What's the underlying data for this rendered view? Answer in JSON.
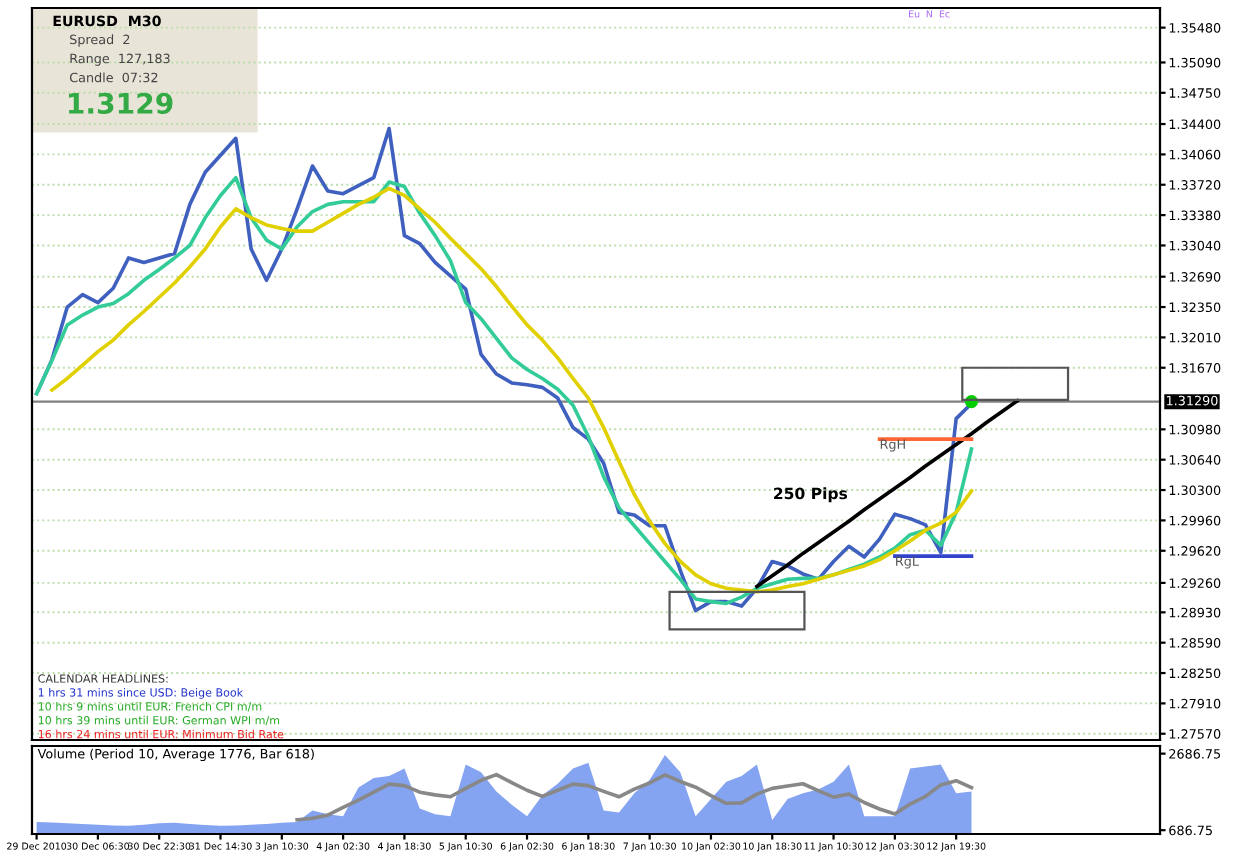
{
  "chart_data": [
    {
      "type": "line",
      "ylim": [
        1.275,
        1.357
      ],
      "tick_labels": "y",
      "grid": "y",
      "legend": false,
      "marker": "none",
      "line_style": "solid",
      "categories": [
        null,
        null,
        null,
        null,
        null,
        null,
        null,
        null,
        null,
        null,
        null,
        null,
        null,
        null,
        null,
        null,
        null,
        null,
        null,
        null,
        null,
        null,
        null,
        null,
        null,
        null,
        null,
        null,
        null,
        null,
        null,
        null,
        null,
        null,
        null,
        null,
        null,
        null,
        null,
        null,
        null,
        null,
        null,
        null,
        null,
        null,
        null,
        null,
        null,
        null,
        null,
        null,
        null,
        null,
        null,
        null,
        null,
        null,
        null,
        null,
        null,
        null,
        null,
        null,
        null,
        null,
        null,
        null,
        null,
        null,
        null,
        null,
        null,
        null
      ],
      "yticks": [
        {
          "value": 1.2757,
          "label": "1.27570"
        },
        {
          "value": 1.2791,
          "label": "1.27910"
        },
        {
          "value": 1.2825,
          "label": "1.28250"
        },
        {
          "value": 1.2859,
          "label": "1.28590"
        },
        {
          "value": 1.2893,
          "label": "1.28930"
        },
        {
          "value": 1.2926,
          "label": "1.29260"
        },
        {
          "value": 1.2962,
          "label": "1.29620"
        },
        {
          "value": 1.2996,
          "label": "1.29960"
        },
        {
          "value": 1.303,
          "label": "1.30300"
        },
        {
          "value": 1.3064,
          "label": "1.30640"
        },
        {
          "value": 1.3098,
          "label": "1.30980"
        },
        {
          "value": 1.3167,
          "label": "1.31670"
        },
        {
          "value": 1.3201,
          "label": "1.32010"
        },
        {
          "value": 1.3235,
          "label": "1.32350"
        },
        {
          "value": 1.3269,
          "label": "1.32690"
        },
        {
          "value": 1.3304,
          "label": "1.33040"
        },
        {
          "value": 1.3338,
          "label": "1.33380"
        },
        {
          "value": 1.3372,
          "label": "1.33720"
        },
        {
          "value": 1.3406,
          "label": "1.34060"
        },
        {
          "value": 1.344,
          "label": "1.34400"
        },
        {
          "value": 1.3475,
          "label": "1.34750"
        },
        {
          "value": 1.3509,
          "label": "1.35090"
        },
        {
          "value": 1.3548,
          "label": "1.35480"
        }
      ],
      "series": [
        {
          "color": "#4060c0",
          "values": [
            1.3138,
            1.3176,
            1.3235,
            1.3249,
            1.324,
            1.3256,
            1.329,
            1.3285,
            1.329,
            1.3295,
            1.335,
            1.3386,
            1.3405,
            1.3424,
            1.33,
            1.3265,
            1.33,
            1.3345,
            1.3393,
            1.3365,
            1.3362,
            1.3371,
            1.338,
            1.3435,
            1.3315,
            1.3306,
            1.3285,
            1.327,
            1.3255,
            1.3182,
            1.316,
            1.315,
            1.3148,
            1.3145,
            1.3133,
            1.31,
            1.3087,
            1.306,
            1.3005,
            1.3002,
            1.299,
            1.299,
            1.294,
            1.2895,
            1.2905,
            1.2905,
            1.29,
            1.292,
            1.295,
            1.2945,
            1.2936,
            1.293,
            1.295,
            1.2967,
            1.2955,
            1.2975,
            1.3003,
            1.2998,
            1.2991,
            1.296,
            1.311,
            1.3127,
            null,
            null,
            null,
            null,
            null,
            null,
            null,
            null,
            null,
            null,
            null,
            null
          ]
        },
        {
          "color": "#33cc99",
          "values": [
            1.3138,
            1.3175,
            1.3215,
            1.3226,
            1.3235,
            1.3239,
            1.325,
            1.3265,
            1.3277,
            1.329,
            1.3304,
            1.3335,
            1.336,
            1.338,
            1.3335,
            1.331,
            1.33,
            1.3325,
            1.3342,
            1.335,
            1.3353,
            1.3353,
            1.3353,
            1.3375,
            1.337,
            1.334,
            1.3315,
            1.3287,
            1.324,
            1.3222,
            1.32,
            1.3178,
            1.3165,
            1.3155,
            1.3143,
            1.3125,
            1.309,
            1.3045,
            1.301,
            1.299,
            1.297,
            1.295,
            1.293,
            1.2908,
            1.2905,
            1.2903,
            1.291,
            1.292,
            1.2925,
            1.293,
            1.2931,
            1.2931,
            1.2935,
            1.2941,
            1.2947,
            1.2955,
            1.2965,
            1.298,
            1.2985,
            1.2968,
            1.3005,
            1.3076,
            null,
            null,
            null,
            null,
            null,
            null,
            null,
            null,
            null,
            null,
            null,
            null
          ]
        },
        {
          "color": "#e0d000",
          "values": [
            null,
            1.3142,
            1.3155,
            1.317,
            1.3185,
            1.3198,
            1.3215,
            1.323,
            1.3246,
            1.3262,
            1.328,
            1.33,
            1.3325,
            1.3345,
            1.3335,
            1.3327,
            1.3323,
            1.332,
            1.332,
            1.333,
            1.334,
            1.335,
            1.3358,
            1.3368,
            1.336,
            1.3345,
            1.333,
            1.3312,
            1.3295,
            1.3278,
            1.3258,
            1.3236,
            1.3215,
            1.3198,
            1.3178,
            1.3155,
            1.3133,
            1.31,
            1.3062,
            1.3025,
            1.2995,
            1.297,
            1.295,
            1.2935,
            1.2925,
            1.292,
            1.2918,
            1.2916,
            1.2918,
            1.2922,
            1.2925,
            1.293,
            1.2935,
            1.294,
            1.2945,
            1.2952,
            1.2962,
            1.2973,
            1.2985,
            1.2993,
            1.3005,
            1.3029,
            null,
            null,
            null,
            null,
            null,
            null,
            null,
            null,
            null,
            null,
            null,
            null
          ]
        },
        {
          "color": "#000000",
          "values": [
            null,
            null,
            null,
            null,
            null,
            null,
            null,
            null,
            null,
            null,
            null,
            null,
            null,
            null,
            null,
            null,
            null,
            null,
            null,
            null,
            null,
            null,
            null,
            null,
            null,
            null,
            null,
            null,
            null,
            null,
            null,
            null,
            null,
            null,
            null,
            null,
            null,
            null,
            null,
            null,
            null,
            null,
            null,
            null,
            null,
            null,
            null,
            1.2922,
            1.2934,
            1.2946,
            1.2959,
            1.2971,
            1.2983,
            1.2995,
            1.3008,
            1.302,
            1.3032,
            1.3044,
            1.3057,
            1.3069,
            1.3081,
            1.3093,
            1.3106,
            1.3118,
            1.313,
            null,
            null,
            null,
            null,
            null,
            null,
            null,
            null,
            null
          ]
        },
        {
          "name": "RgH",
          "color": "#ff6633",
          "values": [
            null,
            null,
            null,
            null,
            null,
            null,
            null,
            null,
            null,
            null,
            null,
            null,
            null,
            null,
            null,
            null,
            null,
            null,
            null,
            null,
            null,
            null,
            null,
            null,
            null,
            null,
            null,
            null,
            null,
            null,
            null,
            null,
            null,
            null,
            null,
            null,
            null,
            null,
            null,
            null,
            null,
            null,
            null,
            null,
            null,
            null,
            null,
            null,
            null,
            null,
            null,
            null,
            null,
            null,
            null,
            1.3087,
            1.3087,
            1.3087,
            1.3087,
            1.3087,
            1.3087,
            1.3087,
            null,
            null,
            null,
            null,
            null,
            null,
            null,
            null,
            null,
            null,
            null,
            null
          ]
        },
        {
          "name": "RgL",
          "color": "#3344cc",
          "values": [
            null,
            null,
            null,
            null,
            null,
            null,
            null,
            null,
            null,
            null,
            null,
            null,
            null,
            null,
            null,
            null,
            null,
            null,
            null,
            null,
            null,
            null,
            null,
            null,
            null,
            null,
            null,
            null,
            null,
            null,
            null,
            null,
            null,
            null,
            null,
            null,
            null,
            null,
            null,
            null,
            null,
            null,
            null,
            null,
            null,
            null,
            null,
            null,
            null,
            null,
            null,
            null,
            null,
            null,
            null,
            null,
            1.2956,
            1.2956,
            1.2956,
            1.2956,
            1.2956,
            1.2956,
            null,
            null,
            null,
            null,
            null,
            null,
            null,
            null,
            null,
            null,
            null,
            null
          ]
        },
        {
          "type": "scatter",
          "color": "#00cc00",
          "marker": "circle",
          "values": [
            null,
            null,
            null,
            null,
            null,
            null,
            null,
            null,
            null,
            null,
            null,
            null,
            null,
            null,
            null,
            null,
            null,
            null,
            null,
            null,
            null,
            null,
            null,
            null,
            null,
            null,
            null,
            null,
            null,
            null,
            null,
            null,
            null,
            null,
            null,
            null,
            null,
            null,
            null,
            null,
            null,
            null,
            null,
            null,
            null,
            null,
            null,
            null,
            null,
            null,
            null,
            null,
            null,
            null,
            null,
            null,
            null,
            null,
            null,
            null,
            null,
            1.3129,
            null,
            null,
            null,
            null,
            null,
            null,
            null,
            null,
            null,
            null,
            null,
            null
          ]
        }
      ],
      "ref_lines": [
        {
          "axis": "y",
          "value": 1.3129,
          "label": "1.31290",
          "color": "#808080",
          "line_style": "solid"
        }
      ],
      "annotations": [
        "EURUSD  M30",
        "Spread  2",
        "Range  127,183",
        "Candle  07:32",
        "1.3129",
        "CALENDAR HEADLINES:",
        "1 hrs 31 mins since USD: Beige Book",
        "10 hrs 9 mins until EUR: French CPI m/m",
        "10 hrs 39 mins until EUR: German WPI m/m",
        "16 hrs 24 mins until EUR: Minimum Bid Rate",
        "250 Pips",
        "Eu",
        "N",
        "Ec"
      ]
    },
    {
      "type": "area",
      "title": "Volume (Period 10, Average 1776, Bar 618)",
      "ylim": [
        586.75,
        2886.75
      ],
      "legend": false,
      "yticks": [
        686.75,
        2686.75
      ],
      "categories": [
        "29 Dec 2010",
        null,
        null,
        null,
        "30 Dec 06:30",
        null,
        null,
        null,
        "30 Dec 22:30",
        null,
        null,
        null,
        "31 Dec 14:30",
        null,
        null,
        null,
        "3 Jan 10:30",
        null,
        null,
        null,
        "4 Jan 02:30",
        null,
        null,
        null,
        "4 Jan 18:30",
        null,
        null,
        null,
        "5 Jan 10:30",
        null,
        null,
        null,
        "6 Jan 02:30",
        null,
        null,
        null,
        "6 Jan 18:30",
        null,
        null,
        null,
        "7 Jan 10:30",
        null,
        null,
        null,
        "10 Jan 02:30",
        null,
        null,
        null,
        "10 Jan 18:30",
        null,
        null,
        null,
        "11 Jan 10:30",
        null,
        null,
        null,
        "12 Jan 03:30",
        null,
        null,
        null,
        "12 Jan 19:30",
        null,
        null,
        null,
        null,
        null,
        null,
        null,
        null,
        null,
        null,
        null,
        null,
        null
      ],
      "series": [
        {
          "color": "#7799ee",
          "values": [
            900,
            890,
            870,
            850,
            830,
            810,
            800,
            830,
            870,
            880,
            850,
            820,
            800,
            810,
            830,
            850,
            880,
            900,
            1200,
            1100,
            1050,
            1800,
            2050,
            2100,
            2300,
            1250,
            1100,
            1050,
            2400,
            2200,
            1700,
            1350,
            1050,
            1600,
            1900,
            2300,
            2450,
            1200,
            1150,
            1650,
            2000,
            2650,
            2200,
            1050,
            1500,
            1950,
            2100,
            2400,
            950,
            1500,
            1650,
            1750,
            1950,
            2400,
            1050,
            1050,
            1050,
            2300,
            2350,
            2400,
            1650,
            1700,
            null,
            null,
            null,
            null,
            null,
            null,
            null,
            null,
            null,
            null,
            null,
            null
          ]
        },
        {
          "type": "line",
          "color": "#888888",
          "values": [
            null,
            null,
            null,
            null,
            null,
            null,
            null,
            null,
            null,
            null,
            null,
            null,
            null,
            null,
            null,
            null,
            null,
            960,
            1000,
            1080,
            1280,
            1470,
            1680,
            1890,
            1850,
            1680,
            1610,
            1560,
            1780,
            1990,
            2140,
            1930,
            1730,
            1570,
            1730,
            1890,
            1850,
            1700,
            1560,
            1760,
            1920,
            2130,
            1960,
            1810,
            1590,
            1390,
            1400,
            1630,
            1780,
            1840,
            1900,
            1720,
            1550,
            1630,
            1410,
            1240,
            1110,
            1370,
            1570,
            1870,
            1980,
            1800,
            null,
            null,
            null,
            null,
            null,
            null,
            null,
            null,
            null,
            null,
            null,
            null
          ]
        }
      ]
    }
  ]
}
